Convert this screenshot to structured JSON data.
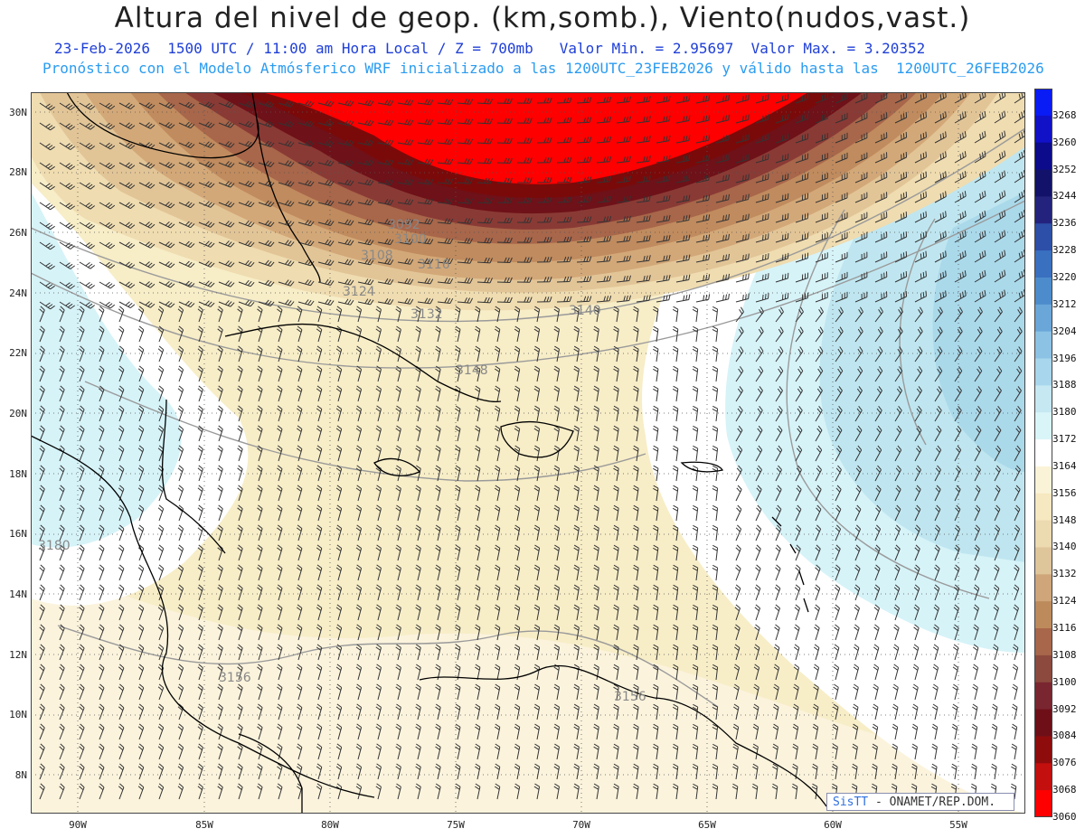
{
  "header": {
    "title": "Altura del nivel de geop. (km,somb.), Viento(nudos,vast.)",
    "line1": "23-Feb-2026  1500 UTC / 11:00 am Hora Local / Z = 700mb   Valor Min. = 2.95697  Valor Max. = 3.20352",
    "line2": "Pronóstico con el Modelo Atmósferico WRF inicializado a las 1200UTC_23FEB2026 y válido hasta las  1200UTC_26FEB2026"
  },
  "map": {
    "lat_labels": [
      "30N",
      "28N",
      "26N",
      "24N",
      "22N",
      "20N",
      "18N",
      "16N",
      "14N",
      "12N",
      "10N",
      "8N"
    ],
    "lon_labels": [
      "90W",
      "85W",
      "80W",
      "75W",
      "70W",
      "65W",
      "60W",
      "55W"
    ],
    "contour_labels": [
      "3092",
      "3100",
      "3108",
      "3116",
      "3124",
      "3132",
      "3140",
      "3148",
      "3156",
      "3156",
      "3180"
    ],
    "credit_brand": "SisTT",
    "credit_text": "- ONAMET/REP.DOM."
  },
  "colorbar": {
    "levels": [
      "3268",
      "3260",
      "3252",
      "3244",
      "3236",
      "3228",
      "3220",
      "3212",
      "3204",
      "3196",
      "3188",
      "3180",
      "3172",
      "3164",
      "3156",
      "3148",
      "3140",
      "3132",
      "3124",
      "3116",
      "3108",
      "3100",
      "3092",
      "3084",
      "3076",
      "3068",
      "3060"
    ],
    "colors": [
      "#0a1cf5",
      "#1111c8",
      "#0b0b8c",
      "#12126a",
      "#23237e",
      "#2d4fa8",
      "#3a70c0",
      "#4d8ccc",
      "#6aa6d8",
      "#8cc2e4",
      "#a8d6ec",
      "#c6e8f2",
      "#d9f5f8",
      "#ffffff",
      "#fbf3d8",
      "#f6e8c0",
      "#ecdab0",
      "#dfc59a",
      "#cfa679",
      "#bd8a5c",
      "#a8664a",
      "#8c4a3e",
      "#7a2630",
      "#6e0f18",
      "#8f0c0c",
      "#c40f0f",
      "#ff0000"
    ]
  },
  "colors": {
    "title": "#222222",
    "subtitle1": "#1f3fd6",
    "subtitle2": "#2b9cf0"
  }
}
